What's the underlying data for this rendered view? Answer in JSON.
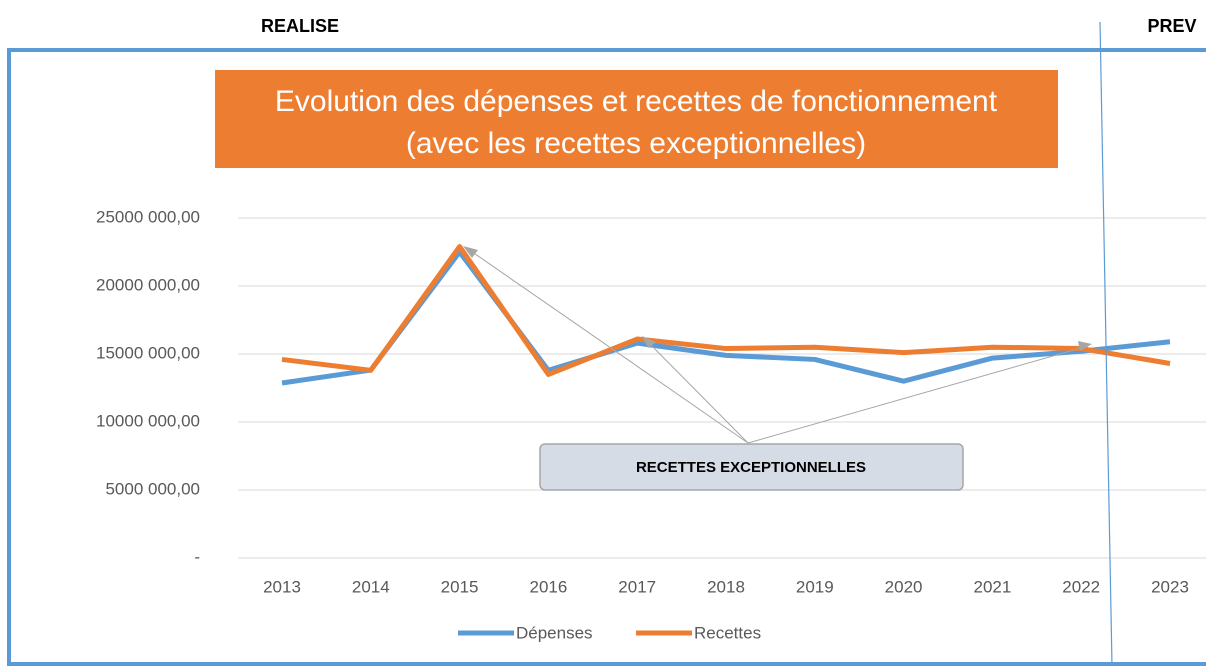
{
  "labels": {
    "realise": "REALISE",
    "prev": "PREV"
  },
  "chart_data": {
    "type": "line",
    "title": "Evolution des dépenses et recettes de fonctionnement",
    "subtitle": "(avec les recettes exceptionnelles)",
    "annotation": "RECETTES EXCEPTIONNELLES",
    "categories": [
      "2013",
      "2014",
      "2015",
      "2016",
      "2017",
      "2018",
      "2019",
      "2020",
      "2021",
      "2022",
      "2023"
    ],
    "series": [
      {
        "name": "Dépenses",
        "color": "#5b9bd5",
        "values": [
          12870000,
          13820000,
          22500000,
          13800000,
          15800000,
          14900000,
          14600000,
          13000000,
          14700000,
          15200000,
          15900000
        ]
      },
      {
        "name": "Recettes",
        "color": "#ed7d31",
        "values": [
          14600000,
          13800000,
          22900000,
          13500000,
          16100000,
          15400000,
          15500000,
          15100000,
          15500000,
          15400000,
          14300000
        ]
      }
    ],
    "ylim": [
      0,
      25000000
    ],
    "yticks": [
      {
        "value": 0,
        "label": "-"
      },
      {
        "value": 5000000,
        "label": "5000 000,00"
      },
      {
        "value": 10000000,
        "label": "10000 000,00"
      },
      {
        "value": 15000000,
        "label": "15000 000,00"
      },
      {
        "value": 20000000,
        "label": "20000 000,00"
      },
      {
        "value": 25000000,
        "label": "25000 000,00"
      }
    ],
    "grid": true,
    "legend": "bottom"
  }
}
